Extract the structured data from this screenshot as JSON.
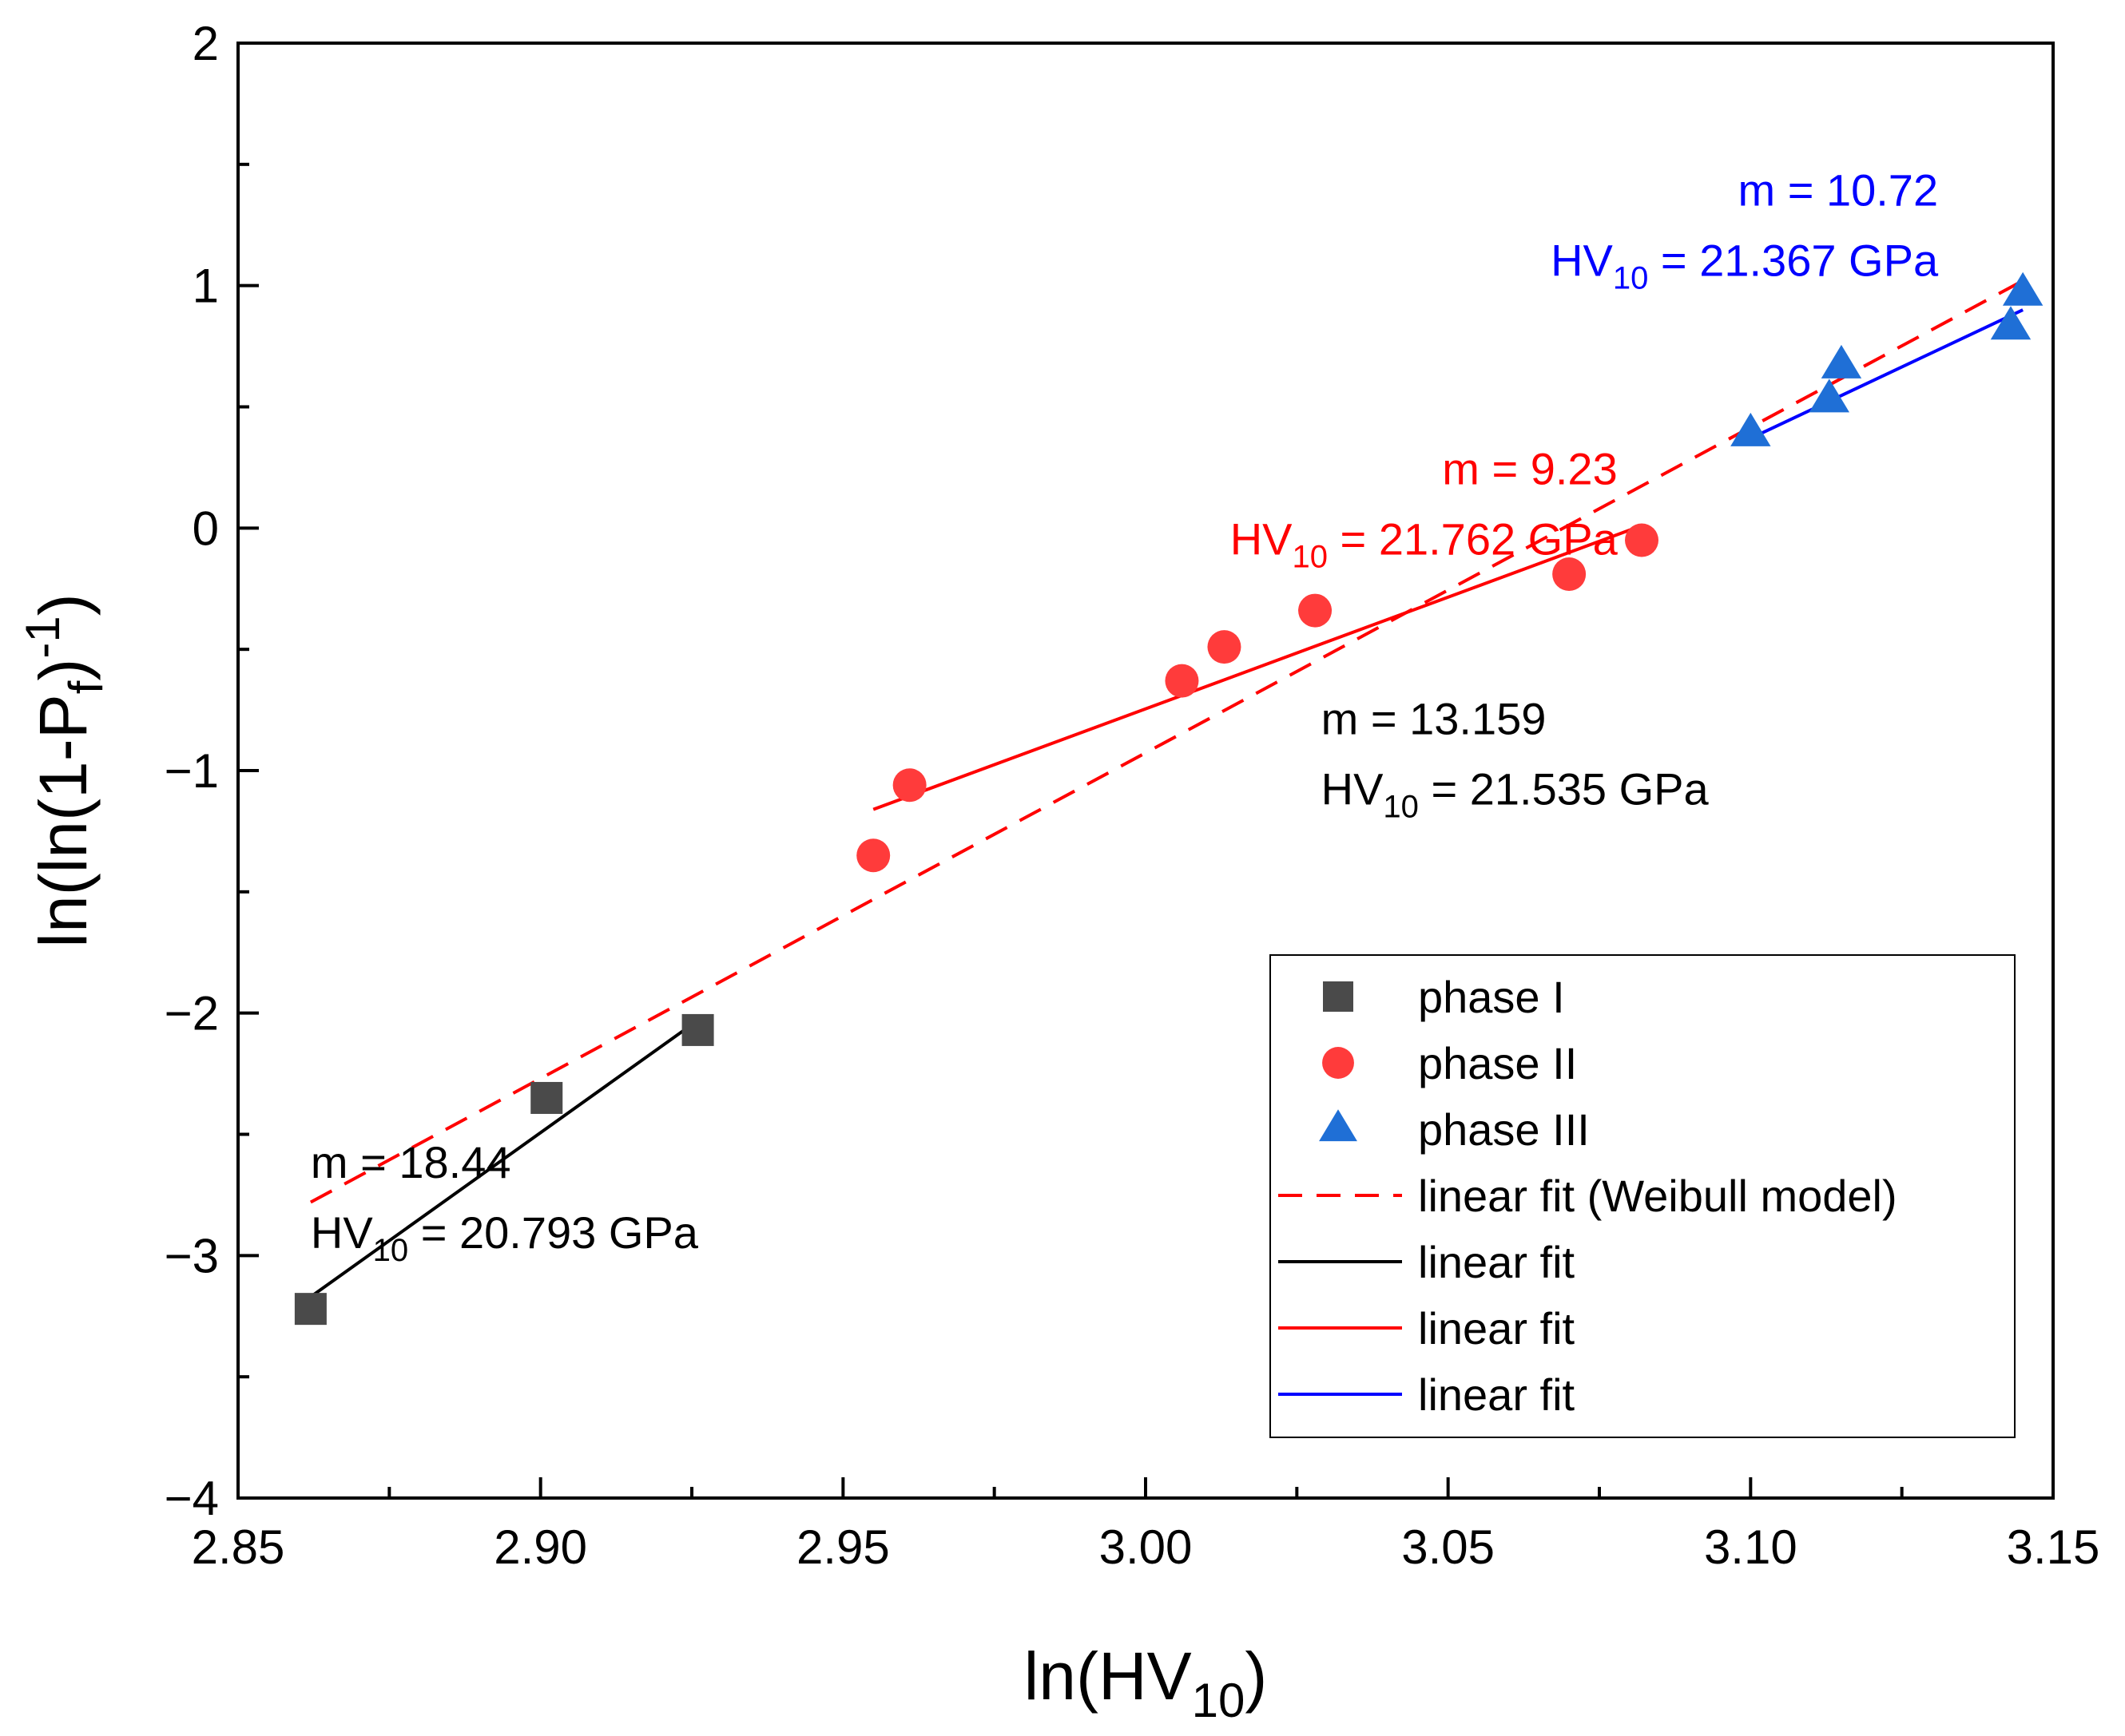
{
  "chart_data": {
    "type": "scatter",
    "xlabel": "ln(HV10)",
    "ylabel": "ln(ln(1-Pf)-1)",
    "xlim": [
      2.85,
      3.15
    ],
    "ylim": [
      -4,
      2
    ],
    "x_ticks": [
      "2.85",
      "2.90",
      "2.95",
      "3.00",
      "3.05",
      "3.10",
      "3.15"
    ],
    "y_ticks": [
      "2",
      "1",
      "0",
      "−1",
      "−2",
      "−3",
      "−4"
    ],
    "grid": false,
    "legend_position": "bottom-right",
    "series": [
      {
        "name": "phase I",
        "kind": "scatter",
        "marker": "square",
        "color": "#4a4a4a",
        "points": [
          [
            2.862,
            -3.22
          ],
          [
            2.901,
            -2.35
          ],
          [
            2.926,
            -2.07
          ]
        ]
      },
      {
        "name": "phase II",
        "kind": "scatter",
        "marker": "circle",
        "color": "#ff3b3b",
        "points": [
          [
            2.955,
            -1.35
          ],
          [
            2.961,
            -1.06
          ],
          [
            3.006,
            -0.63
          ],
          [
            3.013,
            -0.49
          ],
          [
            3.028,
            -0.34
          ],
          [
            3.07,
            -0.19
          ],
          [
            3.082,
            -0.05
          ]
        ]
      },
      {
        "name": "phase III",
        "kind": "scatter",
        "marker": "triangle",
        "color": "#1f6fd6",
        "points": [
          [
            3.1,
            0.39
          ],
          [
            3.113,
            0.53
          ],
          [
            3.115,
            0.67
          ],
          [
            3.143,
            0.83
          ],
          [
            3.145,
            0.97
          ]
        ]
      },
      {
        "name": "linear fit (Weibull model)",
        "kind": "line",
        "dash": true,
        "color": "#ff0000",
        "points": [
          [
            2.862,
            -2.78
          ],
          [
            3.145,
            1.02
          ]
        ]
      },
      {
        "name": "linear fit",
        "kind": "line",
        "dash": false,
        "color": "#000000",
        "points": [
          [
            2.862,
            -3.17
          ],
          [
            2.926,
            -2.03
          ]
        ]
      },
      {
        "name": "linear fit",
        "kind": "line",
        "dash": false,
        "color": "#ff0000",
        "points": [
          [
            2.955,
            -1.16
          ],
          [
            3.082,
            0.01
          ]
        ]
      },
      {
        "name": "linear fit",
        "kind": "line",
        "dash": false,
        "color": "#0000ff",
        "points": [
          [
            3.1,
            0.37
          ],
          [
            3.145,
            0.9
          ]
        ]
      }
    ],
    "annotations": [
      {
        "m_text": "m = 18.44",
        "hv_prefix": "HV",
        "hv_sub": "10",
        "hv_value": " = 20.793 GPa",
        "color": "#000000",
        "anchor": "start",
        "x": 2.862,
        "y": -2.68
      },
      {
        "m_text": "m = 9.23",
        "hv_prefix": "HV",
        "hv_sub": "10",
        "hv_value": " =  21.762 GPa",
        "color": "#ff0000",
        "anchor": "end",
        "x": 3.078,
        "y": 0.18
      },
      {
        "m_text": "m = 13.159",
        "hv_prefix": "HV",
        "hv_sub": "10",
        "hv_value": " = 21.535 GPa",
        "color": "#000000",
        "anchor": "start",
        "x": 3.029,
        "y": -0.85
      },
      {
        "m_text": "m = 10.72",
        "hv_prefix": "HV",
        "hv_sub": "10",
        "hv_value": " = 21.367 GPa",
        "color": "#0000ff",
        "anchor": "end",
        "x": 3.131,
        "y": 1.33
      }
    ]
  }
}
